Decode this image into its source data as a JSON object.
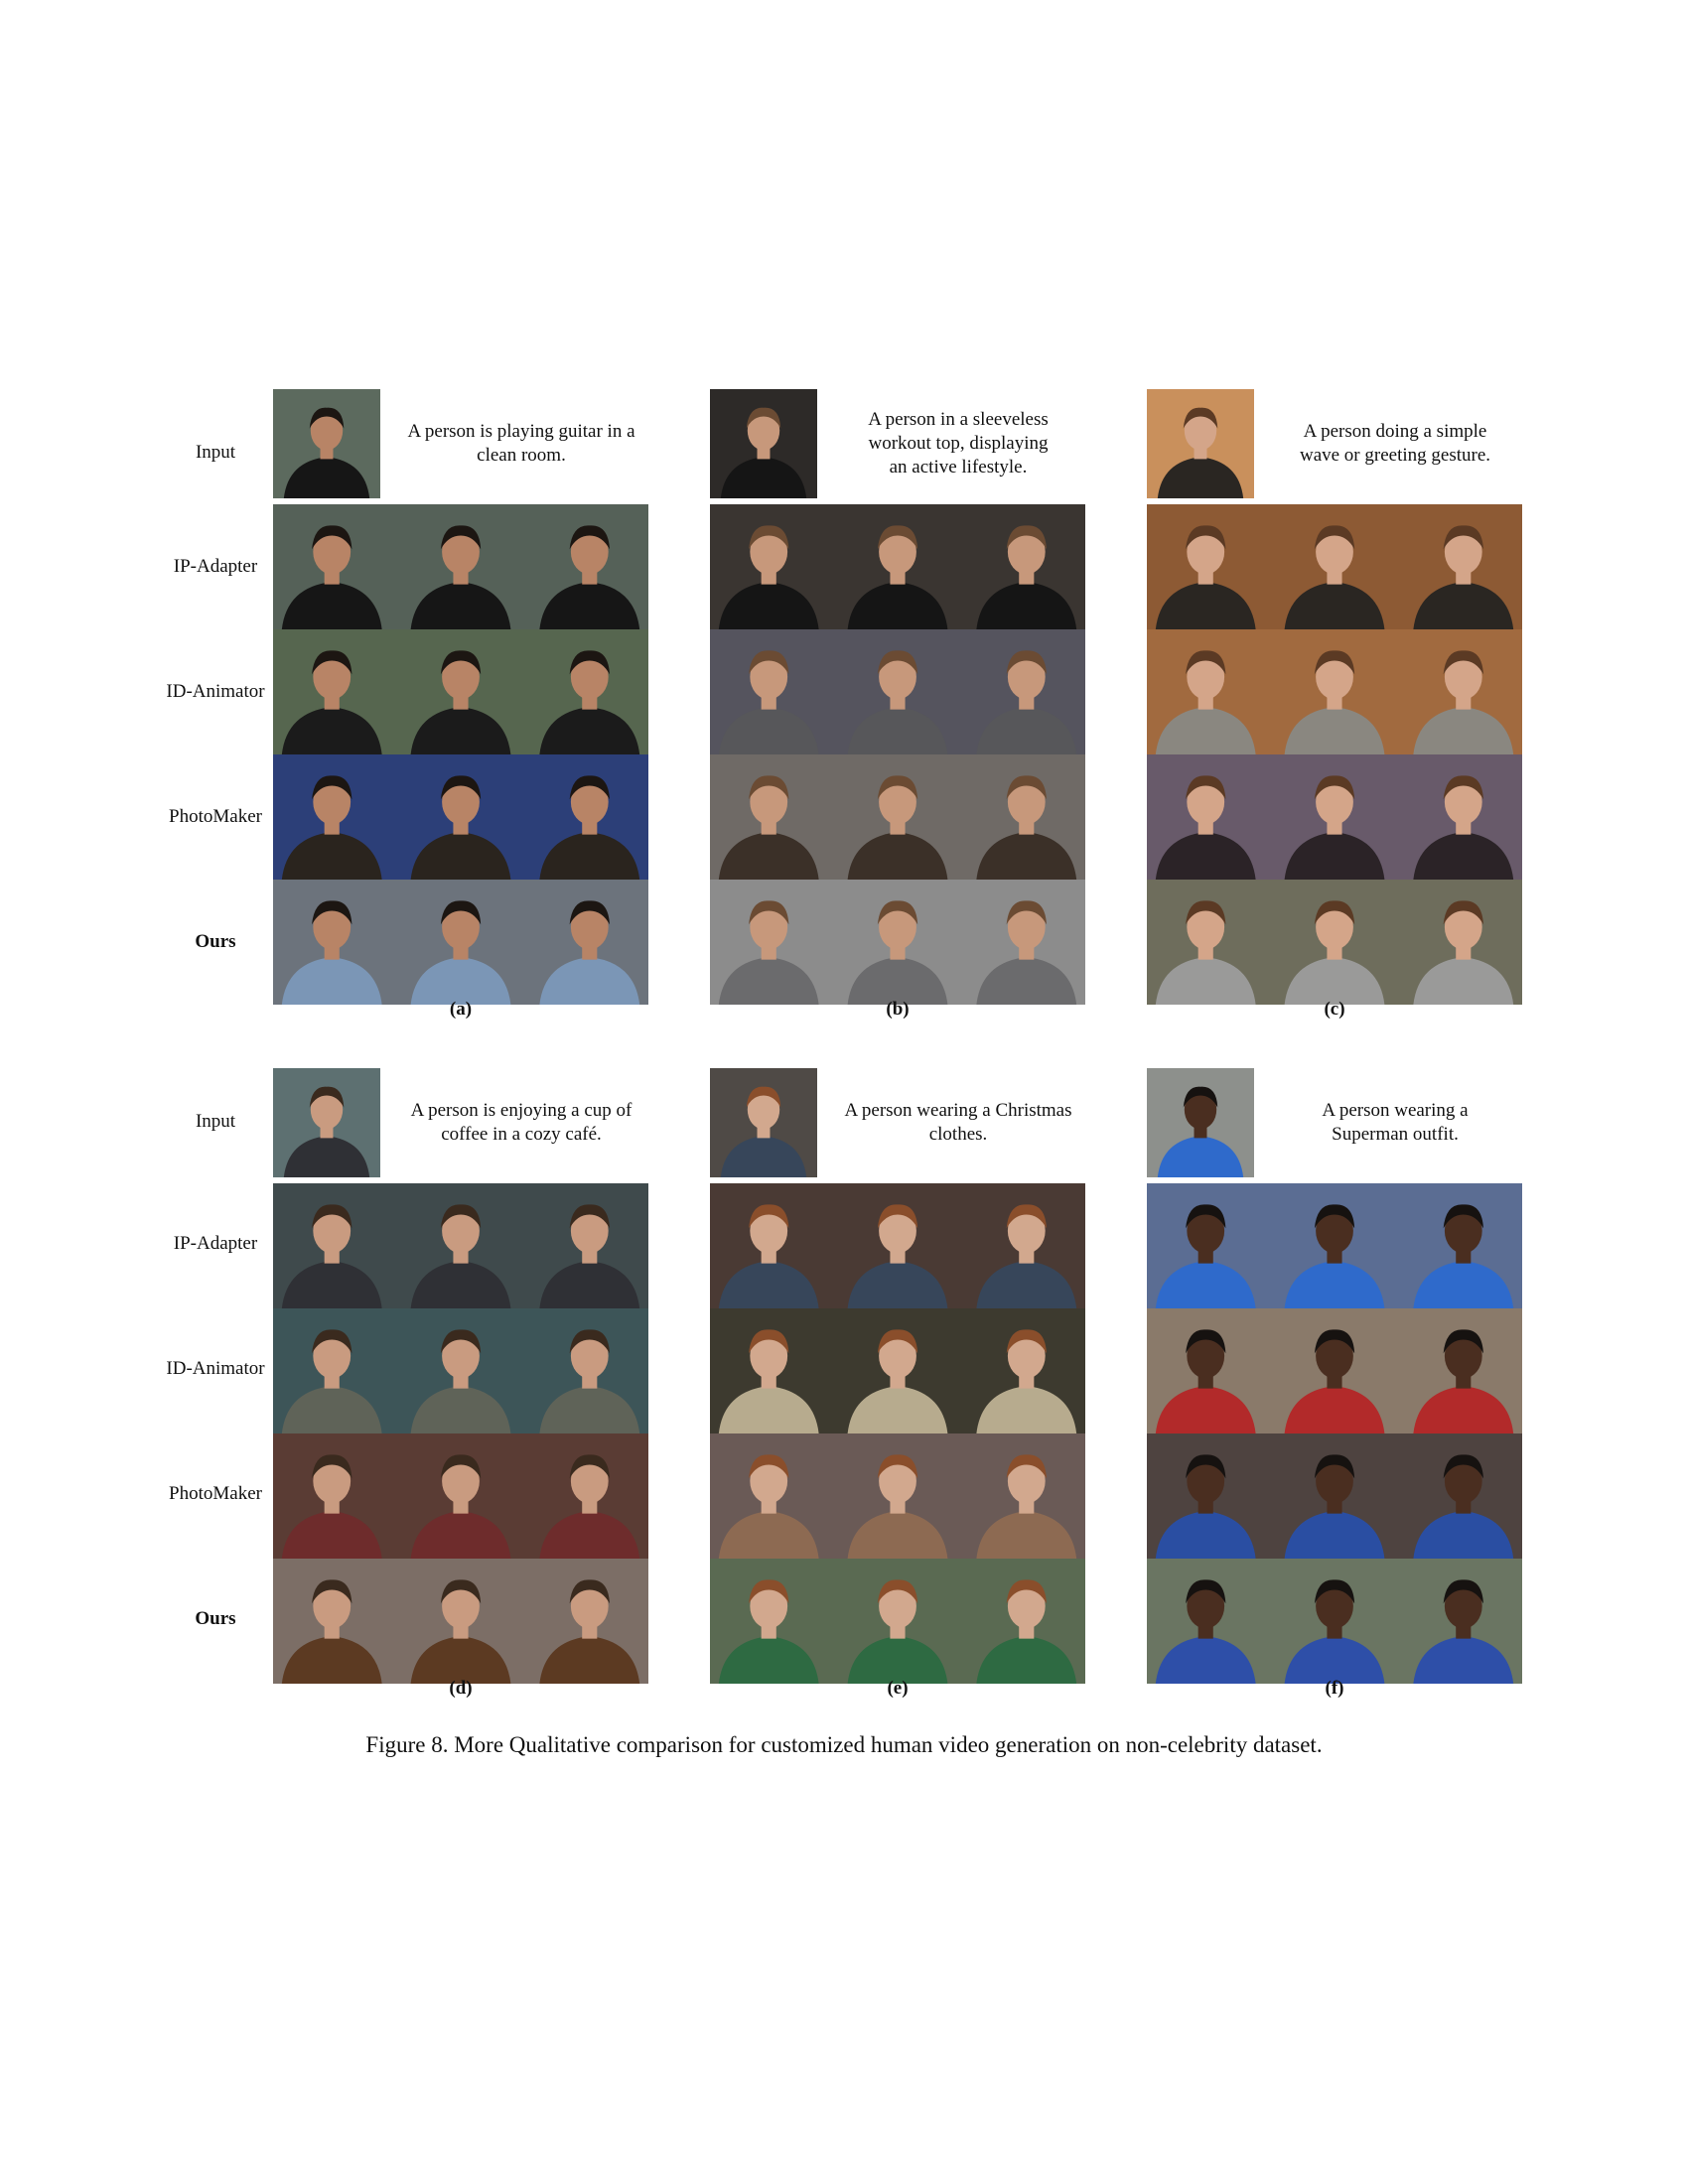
{
  "row_labels": [
    "Input",
    "IP-Adapter",
    "ID-Animator",
    "PhotoMaker",
    "Ours"
  ],
  "panels": [
    {
      "label": "(a)",
      "prompt_lines": [
        "A person is playing guitar in a",
        "clean room."
      ],
      "colors": {
        "input_bg": "#5c6a5e",
        "skin": "#b88466",
        "hair": "#1c1612",
        "rows": [
          {
            "bg": "#556158",
            "cloth": "#161616"
          },
          {
            "bg": "#56664f",
            "cloth": "#1b1b1b"
          },
          {
            "bg": "#2c3f78",
            "cloth": "#2a241e"
          },
          {
            "bg": "#6c737c",
            "cloth": "#7b96b6"
          }
        ]
      }
    },
    {
      "label": "(b)",
      "prompt_lines": [
        "A person in a sleeveless",
        "workout top, displaying",
        "an active lifestyle."
      ],
      "colors": {
        "input_bg": "#2d2a28",
        "skin": "#c7987b",
        "hair": "#6b4b33",
        "rows": [
          {
            "bg": "#3a3531",
            "cloth": "#151515"
          },
          {
            "bg": "#55545e",
            "cloth": "#57575a"
          },
          {
            "bg": "#6f6a66",
            "cloth": "#3b3028"
          },
          {
            "bg": "#8c8c8c",
            "cloth": "#6b6b6d"
          }
        ]
      }
    },
    {
      "label": "(c)",
      "prompt_lines": [
        "A person doing a simple",
        "wave or greeting gesture."
      ],
      "colors": {
        "input_bg": "#c9905c",
        "skin": "#d4a589",
        "hair": "#5b3a24",
        "rows": [
          {
            "bg": "#8d5a34",
            "cloth": "#2a2622"
          },
          {
            "bg": "#a16a3f",
            "cloth": "#8a8780"
          },
          {
            "bg": "#685a6a",
            "cloth": "#2b2327"
          },
          {
            "bg": "#6e6d5c",
            "cloth": "#9a9a99"
          }
        ]
      }
    },
    {
      "label": "(d)",
      "prompt_lines": [
        "A person is enjoying a cup of",
        "coffee in a cozy café."
      ],
      "colors": {
        "input_bg": "#5d7071",
        "skin": "#c99b80",
        "hair": "#3a2a1e",
        "rows": [
          {
            "bg": "#3f4a4c",
            "cloth": "#2f3035"
          },
          {
            "bg": "#3d5558",
            "cloth": "#5f6358"
          },
          {
            "bg": "#5a3c34",
            "cloth": "#6e2c2c"
          },
          {
            "bg": "#7c6e66",
            "cloth": "#5c3a22"
          }
        ]
      }
    },
    {
      "label": "(e)",
      "prompt_lines": [
        "A person wearing a Christmas",
        "clothes."
      ],
      "colors": {
        "input_bg": "#4f4a46",
        "skin": "#d2a88e",
        "hair": "#8a4e2b",
        "rows": [
          {
            "bg": "#4a3a34",
            "cloth": "#37465a"
          },
          {
            "bg": "#3d3a2f",
            "cloth": "#b7ab8e"
          },
          {
            "bg": "#6a5a56",
            "cloth": "#8d6a52"
          },
          {
            "bg": "#5a6a52",
            "cloth": "#2e6a42"
          }
        ]
      }
    },
    {
      "label": "(f)",
      "prompt_lines": [
        "A person wearing a",
        "Superman outfit."
      ],
      "colors": {
        "input_bg": "#8d908c",
        "skin": "#4a2e20",
        "hair": "#161210",
        "rows": [
          {
            "bg": "#5b6d93",
            "cloth": "#2f6acb"
          },
          {
            "bg": "#8a7a6a",
            "cloth": "#b22a2a"
          },
          {
            "bg": "#4e4340",
            "cloth": "#2a4ea2"
          },
          {
            "bg": "#6a7562",
            "cloth": "#2e4fa8"
          }
        ]
      }
    }
  ],
  "caption": "Figure 8. More Qualitative comparison for customized human video generation on non-celebrity dataset."
}
